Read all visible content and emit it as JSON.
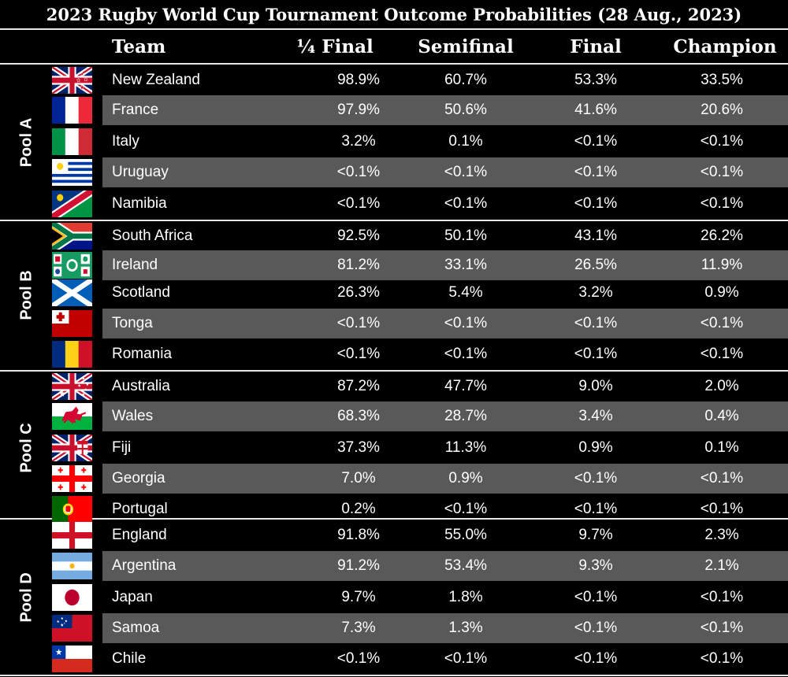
{
  "title": "2023 Rugby World Cup Tournament Outcome Probabilities (28 Aug., 2023)",
  "chart_data": {
    "type": "table",
    "title": "2023 Rugby World Cup Tournament Outcome Probabilities (28 Aug., 2023)",
    "columns": [
      "Team",
      "¼ Final",
      "Semifinal",
      "Final",
      "Champion"
    ],
    "pools": [
      {
        "name": "Pool A",
        "rows": [
          {
            "team": "New Zealand",
            "flag": "new-zealand-flag",
            "values": [
              "98.9%",
              "60.7%",
              "53.3%",
              "33.5%"
            ]
          },
          {
            "team": "France",
            "flag": "france-flag",
            "values": [
              "97.9%",
              "50.6%",
              "41.6%",
              "20.6%"
            ]
          },
          {
            "team": "Italy",
            "flag": "italy-flag",
            "values": [
              "3.2%",
              "0.1%",
              "<0.1%",
              "<0.1%"
            ]
          },
          {
            "team": "Uruguay",
            "flag": "uruguay-flag",
            "values": [
              "<0.1%",
              "<0.1%",
              "<0.1%",
              "<0.1%"
            ]
          },
          {
            "team": "Namibia",
            "flag": "namibia-flag",
            "values": [
              "<0.1%",
              "<0.1%",
              "<0.1%",
              "<0.1%"
            ]
          }
        ]
      },
      {
        "name": "Pool B",
        "rows": [
          {
            "team": "South Africa",
            "flag": "south-africa-flag",
            "values": [
              "92.5%",
              "50.1%",
              "43.1%",
              "26.2%"
            ]
          },
          {
            "team": "Ireland",
            "flag": "ireland-rugby-flag",
            "values": [
              "81.2%",
              "33.1%",
              "26.5%",
              "11.9%"
            ]
          },
          {
            "team": "Scotland",
            "flag": "scotland-flag",
            "values": [
              "26.3%",
              "5.4%",
              "3.2%",
              "0.9%"
            ]
          },
          {
            "team": "Tonga",
            "flag": "tonga-flag",
            "values": [
              "<0.1%",
              "<0.1%",
              "<0.1%",
              "<0.1%"
            ]
          },
          {
            "team": "Romania",
            "flag": "romania-flag",
            "values": [
              "<0.1%",
              "<0.1%",
              "<0.1%",
              "<0.1%"
            ]
          }
        ]
      },
      {
        "name": "Pool C",
        "rows": [
          {
            "team": "Australia",
            "flag": "australia-flag",
            "values": [
              "87.2%",
              "47.7%",
              "9.0%",
              "2.0%"
            ]
          },
          {
            "team": "Wales",
            "flag": "wales-flag",
            "values": [
              "68.3%",
              "28.7%",
              "3.4%",
              "0.4%"
            ]
          },
          {
            "team": "Fiji",
            "flag": "fiji-flag",
            "values": [
              "37.3%",
              "11.3%",
              "0.9%",
              "0.1%"
            ]
          },
          {
            "team": "Georgia",
            "flag": "georgia-flag",
            "values": [
              "7.0%",
              "0.9%",
              "<0.1%",
              "<0.1%"
            ]
          },
          {
            "team": "Portugal",
            "flag": "portugal-flag",
            "values": [
              "0.2%",
              "<0.1%",
              "<0.1%",
              "<0.1%"
            ]
          }
        ]
      },
      {
        "name": "Pool D",
        "rows": [
          {
            "team": "England",
            "flag": "england-flag",
            "values": [
              "91.8%",
              "55.0%",
              "9.7%",
              "2.3%"
            ]
          },
          {
            "team": "Argentina",
            "flag": "argentina-flag",
            "values": [
              "91.2%",
              "53.4%",
              "9.3%",
              "2.1%"
            ]
          },
          {
            "team": "Japan",
            "flag": "japan-flag",
            "values": [
              "9.7%",
              "1.8%",
              "<0.1%",
              "<0.1%"
            ]
          },
          {
            "team": "Samoa",
            "flag": "samoa-flag",
            "values": [
              "7.3%",
              "1.3%",
              "<0.1%",
              "<0.1%"
            ]
          },
          {
            "team": "Chile",
            "flag": "chile-flag",
            "values": [
              "<0.1%",
              "<0.1%",
              "<0.1%",
              "<0.1%"
            ]
          }
        ]
      }
    ]
  },
  "colors": {
    "background": "#000000",
    "row_shade": "#595959",
    "text": "#ffffff",
    "rule": "#e6e6e6"
  }
}
